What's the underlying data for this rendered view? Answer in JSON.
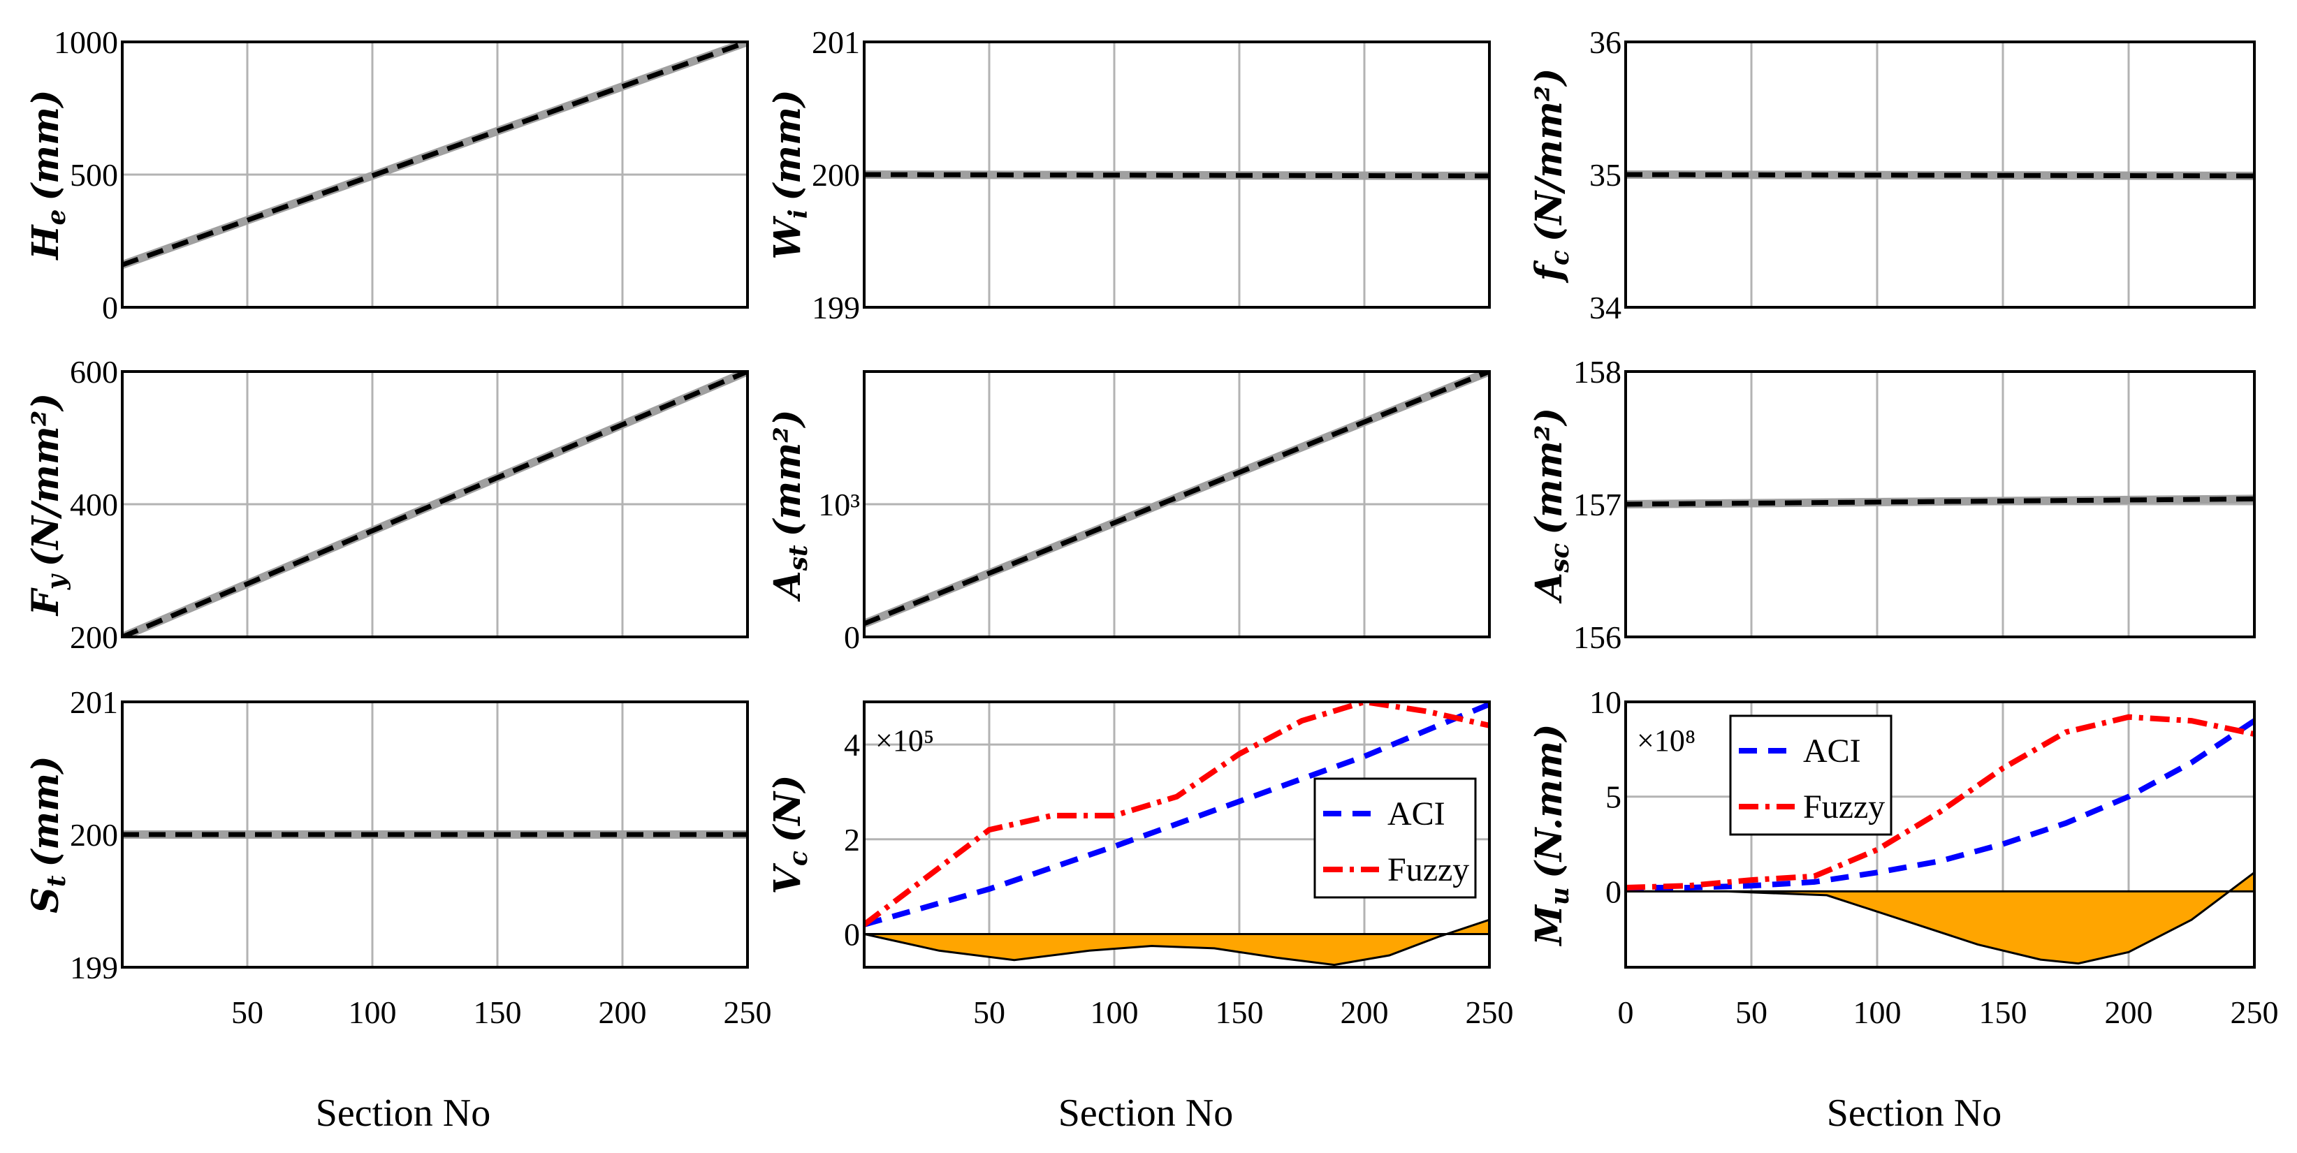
{
  "figure": {
    "xlabel": "Section No",
    "colors": {
      "aci": "#0000ff",
      "fuzzy": "#ff0000",
      "fill": "#ffa500",
      "grid": "#b3b3b3",
      "dash": "#000000",
      "base": "#a0a0a0"
    }
  },
  "chart_data": [
    {
      "id": "He",
      "type": "line",
      "ylabel": "H_e (mm)",
      "ylabel_main": "H",
      "ylabel_sub": "e",
      "ylabel_unit": "(mm)",
      "xlim": [
        0,
        250
      ],
      "ylim": [
        0,
        1000
      ],
      "yticks": [
        "0",
        "500",
        "1000"
      ],
      "ytick_values": [
        0,
        500,
        1000
      ],
      "xticks": [
        "50",
        "100",
        "150",
        "200",
        "250"
      ],
      "xtick_values": [
        50,
        100,
        150,
        200,
        250
      ],
      "show_xticks": false,
      "series": [
        {
          "name": "design",
          "x": [
            0,
            250
          ],
          "y": [
            160,
            1000
          ]
        }
      ]
    },
    {
      "id": "Wi",
      "type": "line",
      "ylabel": "W_i (mm)",
      "ylabel_main": "W",
      "ylabel_sub": "i",
      "ylabel_unit": "(mm)",
      "xlim": [
        0,
        250
      ],
      "ylim": [
        199,
        201
      ],
      "yticks": [
        "199",
        "200",
        "201"
      ],
      "ytick_values": [
        199,
        200,
        201
      ],
      "xticks": [
        "50",
        "100",
        "150",
        "200",
        "250"
      ],
      "xtick_values": [
        50,
        100,
        150,
        200,
        250
      ],
      "show_xticks": false,
      "series": [
        {
          "name": "design",
          "x": [
            0,
            250
          ],
          "y": [
            200,
            199.99
          ]
        }
      ]
    },
    {
      "id": "fc",
      "type": "line",
      "ylabel": "f_c (N/mm^2)",
      "ylabel_main": "f",
      "ylabel_sub": "c",
      "ylabel_unit": "(N/mm²)",
      "xlim": [
        0,
        250
      ],
      "ylim": [
        34,
        36
      ],
      "yticks": [
        "34",
        "35",
        "36"
      ],
      "ytick_values": [
        34,
        35,
        36
      ],
      "xticks": [
        "50",
        "100",
        "150",
        "200",
        "250"
      ],
      "xtick_values": [
        50,
        100,
        150,
        200,
        250
      ],
      "show_xticks": false,
      "series": [
        {
          "name": "design",
          "x": [
            0,
            250
          ],
          "y": [
            35,
            34.99
          ]
        }
      ]
    },
    {
      "id": "Fy",
      "type": "line",
      "ylabel": "F_y (N/mm^2)",
      "ylabel_main": "F",
      "ylabel_sub": "y",
      "ylabel_unit": "(N/mm²)",
      "xlim": [
        0,
        250
      ],
      "ylim": [
        200,
        600
      ],
      "yticks": [
        "200",
        "400",
        "600"
      ],
      "ytick_values": [
        200,
        400,
        600
      ],
      "xticks": [
        "50",
        "100",
        "150",
        "200",
        "250"
      ],
      "xtick_values": [
        50,
        100,
        150,
        200,
        250
      ],
      "show_xticks": false,
      "series": [
        {
          "name": "design",
          "x": [
            0,
            250
          ],
          "y": [
            200,
            600
          ]
        }
      ]
    },
    {
      "id": "Ast",
      "type": "line",
      "ylabel": "A_st (mm^2)",
      "ylabel_main": "A",
      "ylabel_sub": "st",
      "ylabel_unit": "(mm²)",
      "xlim": [
        0,
        250
      ],
      "ylim": [
        0,
        2000
      ],
      "yticks": [
        "0",
        "10³"
      ],
      "ytick_values": [
        0,
        1000
      ],
      "xticks": [
        "50",
        "100",
        "150",
        "200",
        "250"
      ],
      "xtick_values": [
        50,
        100,
        150,
        200,
        250
      ],
      "show_xticks": false,
      "series": [
        {
          "name": "design",
          "x": [
            0,
            250
          ],
          "y": [
            100,
            2000
          ]
        }
      ]
    },
    {
      "id": "Asc",
      "type": "line",
      "ylabel": "A_sc (mm^2)",
      "ylabel_main": "A",
      "ylabel_sub": "sc",
      "ylabel_unit": "(mm²)",
      "xlim": [
        0,
        250
      ],
      "ylim": [
        156,
        158
      ],
      "yticks": [
        "156",
        "157",
        "158"
      ],
      "ytick_values": [
        156,
        157,
        158
      ],
      "xticks": [
        "50",
        "100",
        "150",
        "200",
        "250"
      ],
      "xtick_values": [
        50,
        100,
        150,
        200,
        250
      ],
      "show_xticks": false,
      "series": [
        {
          "name": "design",
          "x": [
            0,
            250
          ],
          "y": [
            157.0,
            157.04
          ]
        }
      ]
    },
    {
      "id": "St",
      "type": "line",
      "ylabel": "S_t (mm)",
      "ylabel_main": "S",
      "ylabel_sub": "t",
      "ylabel_unit": "(mm)",
      "xlim": [
        0,
        250
      ],
      "ylim": [
        199,
        201
      ],
      "yticks": [
        "199",
        "200",
        "201"
      ],
      "ytick_values": [
        199,
        200,
        201
      ],
      "xticks": [
        "50",
        "100",
        "150",
        "200",
        "250"
      ],
      "xtick_values": [
        50,
        100,
        150,
        200,
        250
      ],
      "show_xticks": true,
      "xlabel": "Section No",
      "series": [
        {
          "name": "design",
          "x": [
            0,
            250
          ],
          "y": [
            200,
            200
          ]
        }
      ]
    },
    {
      "id": "Vc",
      "type": "line",
      "ylabel": "V_c (N)",
      "ylabel_main": "V",
      "ylabel_sub": "c",
      "ylabel_unit": "(N)",
      "multiplier": "×10⁵",
      "xlim": [
        0,
        250
      ],
      "ylim": [
        -0.7,
        4.9
      ],
      "yticks": [
        "0",
        "2",
        "4"
      ],
      "ytick_values": [
        0,
        2,
        4
      ],
      "xticks": [
        "50",
        "100",
        "150",
        "200",
        "250"
      ],
      "xtick_values": [
        50,
        100,
        150,
        200,
        250
      ],
      "show_xticks": true,
      "xlabel": "Section No",
      "legend": {
        "position": "right",
        "entries": [
          "ACI",
          "Fuzzy"
        ]
      },
      "series": [
        {
          "name": "ACI",
          "x": [
            0,
            50,
            100,
            150,
            200,
            250
          ],
          "y": [
            0.2,
            0.95,
            1.85,
            2.8,
            3.75,
            4.85
          ]
        },
        {
          "name": "Fuzzy",
          "x": [
            0,
            25,
            50,
            75,
            100,
            125,
            150,
            175,
            200,
            225,
            250
          ],
          "y": [
            0.2,
            1.2,
            2.2,
            2.5,
            2.5,
            2.9,
            3.8,
            4.5,
            4.9,
            4.7,
            4.4
          ]
        },
        {
          "name": "difference",
          "x": [
            0,
            30,
            60,
            90,
            115,
            140,
            165,
            188,
            210,
            230,
            250
          ],
          "y": [
            0,
            -0.35,
            -0.55,
            -0.35,
            -0.25,
            -0.3,
            -0.5,
            -0.65,
            -0.45,
            -0.05,
            0.3
          ]
        }
      ]
    },
    {
      "id": "Mu",
      "type": "line",
      "ylabel": "M_u (N.mm)",
      "ylabel_main": "M",
      "ylabel_sub": "u",
      "ylabel_unit": "(N.mm)",
      "multiplier": "×10⁸",
      "xlim": [
        0,
        250
      ],
      "ylim": [
        -4,
        10
      ],
      "yticks": [
        "0",
        "5",
        "10"
      ],
      "ytick_values": [
        0,
        5,
        10
      ],
      "xticks": [
        "0",
        "50",
        "100",
        "150",
        "200",
        "250"
      ],
      "xtick_values": [
        0,
        50,
        100,
        150,
        200,
        250
      ],
      "show_xticks": true,
      "xlabel": "Section No",
      "legend": {
        "position": "top-left",
        "entries": [
          "ACI",
          "Fuzzy"
        ]
      },
      "series": [
        {
          "name": "ACI",
          "x": [
            0,
            25,
            50,
            75,
            100,
            125,
            150,
            175,
            200,
            225,
            250
          ],
          "y": [
            0.2,
            0.2,
            0.3,
            0.5,
            1.0,
            1.6,
            2.5,
            3.6,
            5.0,
            6.8,
            9.0
          ]
        },
        {
          "name": "Fuzzy",
          "x": [
            0,
            25,
            50,
            75,
            100,
            125,
            150,
            175,
            200,
            225,
            250
          ],
          "y": [
            0.2,
            0.3,
            0.6,
            0.8,
            2.2,
            4.2,
            6.5,
            8.4,
            9.2,
            9.0,
            8.3
          ]
        },
        {
          "name": "difference",
          "x": [
            0,
            40,
            80,
            110,
            140,
            165,
            180,
            200,
            225,
            250
          ],
          "y": [
            0,
            0,
            -0.2,
            -1.5,
            -2.8,
            -3.6,
            -3.8,
            -3.2,
            -1.5,
            1.0
          ]
        }
      ]
    }
  ]
}
